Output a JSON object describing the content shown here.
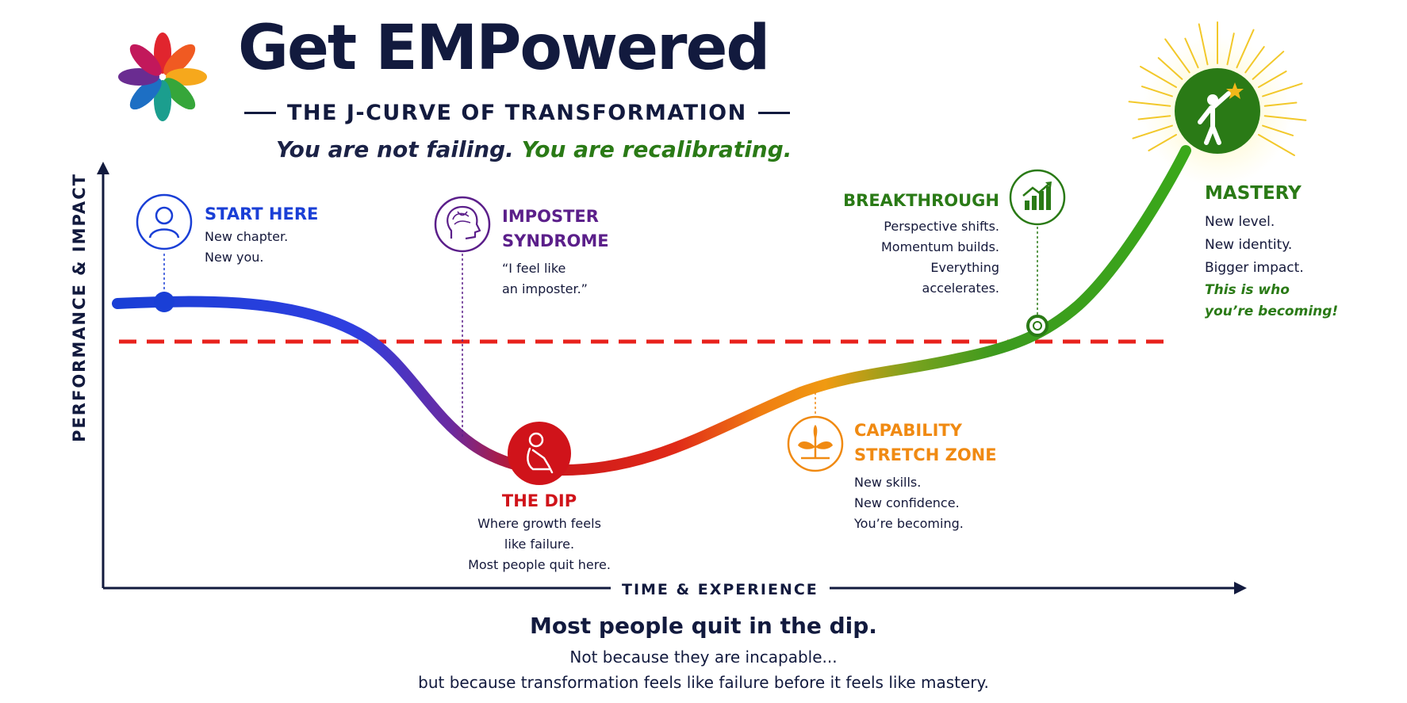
{
  "header": {
    "title": "Get EMPowered",
    "subtitle": "THE J-CURVE OF TRANSFORMATION",
    "tagline_part1": "You are not failing.",
    "tagline_part2": "You are recalibrating."
  },
  "axes": {
    "y_label": "PERFORMANCE & IMPACT",
    "x_label": "TIME & EXPERIENCE"
  },
  "stages": {
    "start": {
      "title": "START HERE",
      "lines": [
        "New chapter.",
        "New you."
      ],
      "color": "#1a3fd6",
      "icon": "person-icon"
    },
    "imposter": {
      "title_lines": [
        "IMPOSTER",
        "SYNDROME"
      ],
      "lines": [
        "“I feel like",
        "an imposter.”"
      ],
      "color": "#5b1f8a",
      "icon": "brain-head-icon"
    },
    "dip": {
      "title": "THE DIP",
      "lines": [
        "Where growth feels",
        "like failure.",
        "Most people quit here."
      ],
      "color": "#d0131a",
      "icon": "sitting-person-icon"
    },
    "capability": {
      "title_lines": [
        "CAPABILITY",
        "STRETCH ZONE"
      ],
      "lines": [
        "New skills.",
        "New confidence.",
        "You’re becoming."
      ],
      "color": "#f08a12",
      "icon": "sprout-icon"
    },
    "breakthrough": {
      "title": "BREAKTHROUGH",
      "lines": [
        "Perspective shifts.",
        "Momentum builds.",
        "Everything",
        "accelerates."
      ],
      "color": "#2a7a16",
      "icon": "growth-chart-icon"
    },
    "mastery": {
      "title": "MASTERY",
      "lines": [
        "New level.",
        "New identity.",
        "Bigger impact."
      ],
      "italic_lines": [
        "This is who",
        "you’re becoming!"
      ],
      "color": "#2a7a16",
      "icon": "reaching-star-icon"
    }
  },
  "footer": {
    "headline": "Most people quit in the dip.",
    "line1": "Not because they are incapable...",
    "line2": "but because transformation feels like failure before it feels like mastery."
  },
  "colors": {
    "navy": "#121a3e",
    "blue": "#1a3fd6",
    "purple": "#5b1f8a",
    "red": "#d0131a",
    "orange": "#f08a12",
    "green": "#2a7a16",
    "dashed_line": "#e8221c"
  }
}
